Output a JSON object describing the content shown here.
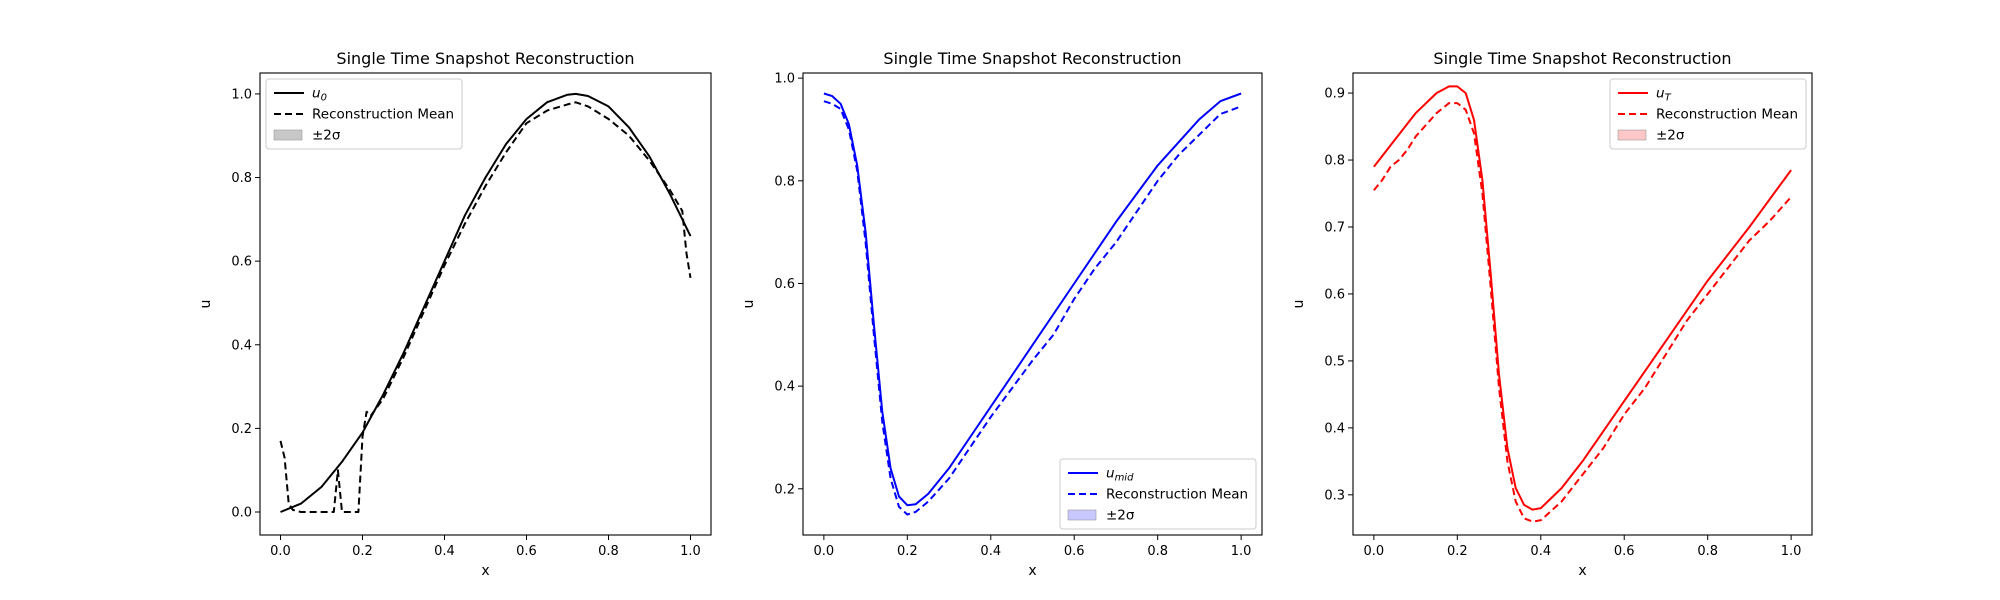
{
  "chart_data": [
    {
      "type": "line",
      "title": "Single Time Snapshot Reconstruction",
      "xlabel": "x",
      "ylabel": "u",
      "xlim": [
        -0.05,
        1.05
      ],
      "ylim": [
        -0.055,
        1.05
      ],
      "xticks": [
        "0.0",
        "0.2",
        "0.4",
        "0.6",
        "0.8",
        "1.0"
      ],
      "yticks": [
        "0.0",
        "0.2",
        "0.4",
        "0.6",
        "0.8",
        "1.0"
      ],
      "grid": false,
      "legend_position": "top-left",
      "color": "#000000",
      "band_color": "#c8c8c8",
      "legend": {
        "truth": "u₀",
        "mean": "Reconstruction Mean",
        "band": "±2σ"
      },
      "series": [
        {
          "style": "solid",
          "x": [
            0,
            0.05,
            0.1,
            0.15,
            0.2,
            0.25,
            0.3,
            0.35,
            0.4,
            0.45,
            0.5,
            0.55,
            0.6,
            0.65,
            0.7,
            0.72,
            0.75,
            0.8,
            0.85,
            0.9,
            0.95,
            1.0
          ],
          "y": [
            0,
            0.02,
            0.06,
            0.12,
            0.19,
            0.28,
            0.38,
            0.49,
            0.6,
            0.71,
            0.8,
            0.88,
            0.94,
            0.98,
            0.998,
            1.0,
            0.995,
            0.97,
            0.92,
            0.85,
            0.76,
            0.66
          ]
        },
        {
          "style": "dashed",
          "x": [
            0,
            0.01,
            0.02,
            0.03,
            0.05,
            0.1,
            0.13,
            0.14,
            0.15,
            0.16,
            0.19,
            0.2,
            0.21,
            0.22,
            0.25,
            0.3,
            0.35,
            0.4,
            0.45,
            0.5,
            0.55,
            0.6,
            0.65,
            0.7,
            0.72,
            0.75,
            0.8,
            0.85,
            0.9,
            0.95,
            0.98,
            0.99,
            1.0
          ],
          "y": [
            0.17,
            0.13,
            0.02,
            0.005,
            0.0,
            0.0,
            0.0,
            0.1,
            0.0,
            0.0,
            0.0,
            0.18,
            0.24,
            0.23,
            0.27,
            0.37,
            0.48,
            0.59,
            0.69,
            0.78,
            0.86,
            0.93,
            0.96,
            0.975,
            0.98,
            0.97,
            0.94,
            0.9,
            0.84,
            0.77,
            0.72,
            0.62,
            0.56
          ]
        }
      ]
    },
    {
      "type": "line",
      "title": "Single Time Snapshot Reconstruction",
      "xlabel": "x",
      "ylabel": "u",
      "xlim": [
        -0.05,
        1.05
      ],
      "ylim": [
        0.11,
        1.01
      ],
      "xticks": [
        "0.0",
        "0.2",
        "0.4",
        "0.6",
        "0.8",
        "1.0"
      ],
      "yticks": [
        "0.2",
        "0.4",
        "0.6",
        "0.8",
        "1.0"
      ],
      "grid": false,
      "legend_position": "bottom-right",
      "color": "#0000ff",
      "band_color": "#c8c8ff",
      "legend": {
        "truth": "u_mid",
        "mean": "Reconstruction Mean",
        "band": "±2σ"
      },
      "series": [
        {
          "style": "solid",
          "x": [
            0,
            0.02,
            0.04,
            0.06,
            0.08,
            0.1,
            0.12,
            0.14,
            0.16,
            0.18,
            0.2,
            0.22,
            0.25,
            0.3,
            0.35,
            0.4,
            0.5,
            0.6,
            0.7,
            0.8,
            0.9,
            0.95,
            1.0
          ],
          "y": [
            0.97,
            0.965,
            0.95,
            0.91,
            0.83,
            0.7,
            0.52,
            0.35,
            0.24,
            0.185,
            0.168,
            0.17,
            0.19,
            0.24,
            0.3,
            0.36,
            0.48,
            0.6,
            0.72,
            0.83,
            0.92,
            0.955,
            0.97
          ]
        },
        {
          "style": "dashed",
          "x": [
            0,
            0.02,
            0.04,
            0.06,
            0.08,
            0.1,
            0.12,
            0.14,
            0.16,
            0.18,
            0.2,
            0.22,
            0.25,
            0.3,
            0.35,
            0.4,
            0.5,
            0.55,
            0.6,
            0.65,
            0.7,
            0.75,
            0.8,
            0.85,
            0.9,
            0.95,
            1.0
          ],
          "y": [
            0.955,
            0.95,
            0.94,
            0.9,
            0.82,
            0.68,
            0.5,
            0.33,
            0.22,
            0.165,
            0.15,
            0.155,
            0.175,
            0.22,
            0.28,
            0.34,
            0.45,
            0.5,
            0.57,
            0.63,
            0.68,
            0.74,
            0.8,
            0.85,
            0.89,
            0.93,
            0.945
          ]
        }
      ]
    },
    {
      "type": "line",
      "title": "Single Time Snapshot Reconstruction",
      "xlabel": "x",
      "ylabel": "u",
      "xlim": [
        -0.05,
        1.05
      ],
      "ylim": [
        0.24,
        0.93
      ],
      "xticks": [
        "0.0",
        "0.2",
        "0.4",
        "0.6",
        "0.8",
        "1.0"
      ],
      "yticks": [
        "0.3",
        "0.4",
        "0.5",
        "0.6",
        "0.7",
        "0.8",
        "0.9"
      ],
      "grid": false,
      "legend_position": "top-right",
      "color": "#ff0000",
      "band_color": "#ffc8c8",
      "legend": {
        "truth": "u_T",
        "mean": "Reconstruction Mean",
        "band": "±2σ"
      },
      "series": [
        {
          "style": "solid",
          "x": [
            0,
            0.05,
            0.1,
            0.15,
            0.18,
            0.2,
            0.22,
            0.24,
            0.26,
            0.28,
            0.3,
            0.32,
            0.34,
            0.36,
            0.38,
            0.4,
            0.45,
            0.5,
            0.6,
            0.7,
            0.8,
            0.9,
            1.0
          ],
          "y": [
            0.79,
            0.83,
            0.87,
            0.9,
            0.91,
            0.91,
            0.9,
            0.86,
            0.77,
            0.63,
            0.48,
            0.37,
            0.31,
            0.285,
            0.278,
            0.28,
            0.31,
            0.35,
            0.44,
            0.53,
            0.62,
            0.7,
            0.785
          ]
        },
        {
          "style": "dashed",
          "x": [
            0,
            0.02,
            0.04,
            0.06,
            0.08,
            0.1,
            0.15,
            0.18,
            0.2,
            0.22,
            0.24,
            0.26,
            0.28,
            0.3,
            0.32,
            0.34,
            0.36,
            0.38,
            0.4,
            0.45,
            0.5,
            0.55,
            0.6,
            0.65,
            0.7,
            0.75,
            0.8,
            0.85,
            0.9,
            0.95,
            1.0
          ],
          "y": [
            0.755,
            0.77,
            0.79,
            0.8,
            0.815,
            0.835,
            0.87,
            0.885,
            0.885,
            0.875,
            0.84,
            0.75,
            0.61,
            0.46,
            0.35,
            0.29,
            0.265,
            0.26,
            0.262,
            0.29,
            0.33,
            0.37,
            0.42,
            0.46,
            0.51,
            0.56,
            0.6,
            0.64,
            0.68,
            0.71,
            0.745
          ]
        }
      ]
    }
  ]
}
